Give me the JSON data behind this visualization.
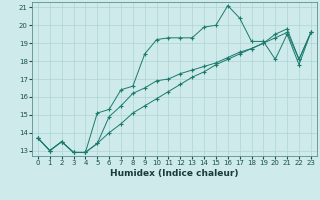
{
  "xlabel": "Humidex (Indice chaleur)",
  "ylabel": "",
  "bg_color": "#ceeaea",
  "line_color": "#1a7a6e",
  "grid_color": "#aed4d4",
  "xlim": [
    -0.5,
    23.5
  ],
  "ylim": [
    12.7,
    21.3
  ],
  "yticks": [
    13,
    14,
    15,
    16,
    17,
    18,
    19,
    20,
    21
  ],
  "xticks": [
    0,
    1,
    2,
    3,
    4,
    5,
    6,
    7,
    8,
    9,
    10,
    11,
    12,
    13,
    14,
    15,
    16,
    17,
    18,
    19,
    20,
    21,
    22,
    23
  ],
  "series": [
    {
      "x": [
        0,
        1,
        2,
        3,
        4,
        5,
        6,
        7,
        8,
        9,
        10,
        11,
        12,
        13,
        14,
        15,
        16,
        17,
        18,
        19,
        20,
        21,
        22,
        23
      ],
      "y": [
        13.7,
        13.0,
        13.5,
        12.9,
        12.9,
        15.1,
        15.3,
        16.4,
        16.6,
        18.4,
        19.2,
        19.3,
        19.3,
        19.3,
        19.9,
        20.0,
        21.1,
        20.4,
        19.1,
        19.1,
        18.1,
        19.5,
        17.8,
        19.6
      ]
    },
    {
      "x": [
        0,
        1,
        2,
        3,
        4,
        5,
        6,
        7,
        8,
        9,
        10,
        11,
        12,
        13,
        14,
        15,
        16,
        17,
        18,
        19,
        20,
        21,
        22,
        23
      ],
      "y": [
        13.7,
        13.0,
        13.5,
        12.9,
        12.9,
        13.4,
        14.9,
        15.5,
        16.2,
        16.5,
        16.9,
        17.0,
        17.3,
        17.5,
        17.7,
        17.9,
        18.2,
        18.5,
        18.7,
        19.0,
        19.5,
        19.8,
        18.1,
        19.6
      ]
    },
    {
      "x": [
        0,
        1,
        2,
        3,
        4,
        5,
        6,
        7,
        8,
        9,
        10,
        11,
        12,
        13,
        14,
        15,
        16,
        17,
        18,
        19,
        20,
        21,
        22,
        23
      ],
      "y": [
        13.7,
        13.0,
        13.5,
        12.9,
        12.9,
        13.4,
        14.0,
        14.5,
        15.1,
        15.5,
        15.9,
        16.3,
        16.7,
        17.1,
        17.4,
        17.8,
        18.1,
        18.4,
        18.7,
        19.0,
        19.3,
        19.6,
        18.1,
        19.6
      ]
    }
  ]
}
